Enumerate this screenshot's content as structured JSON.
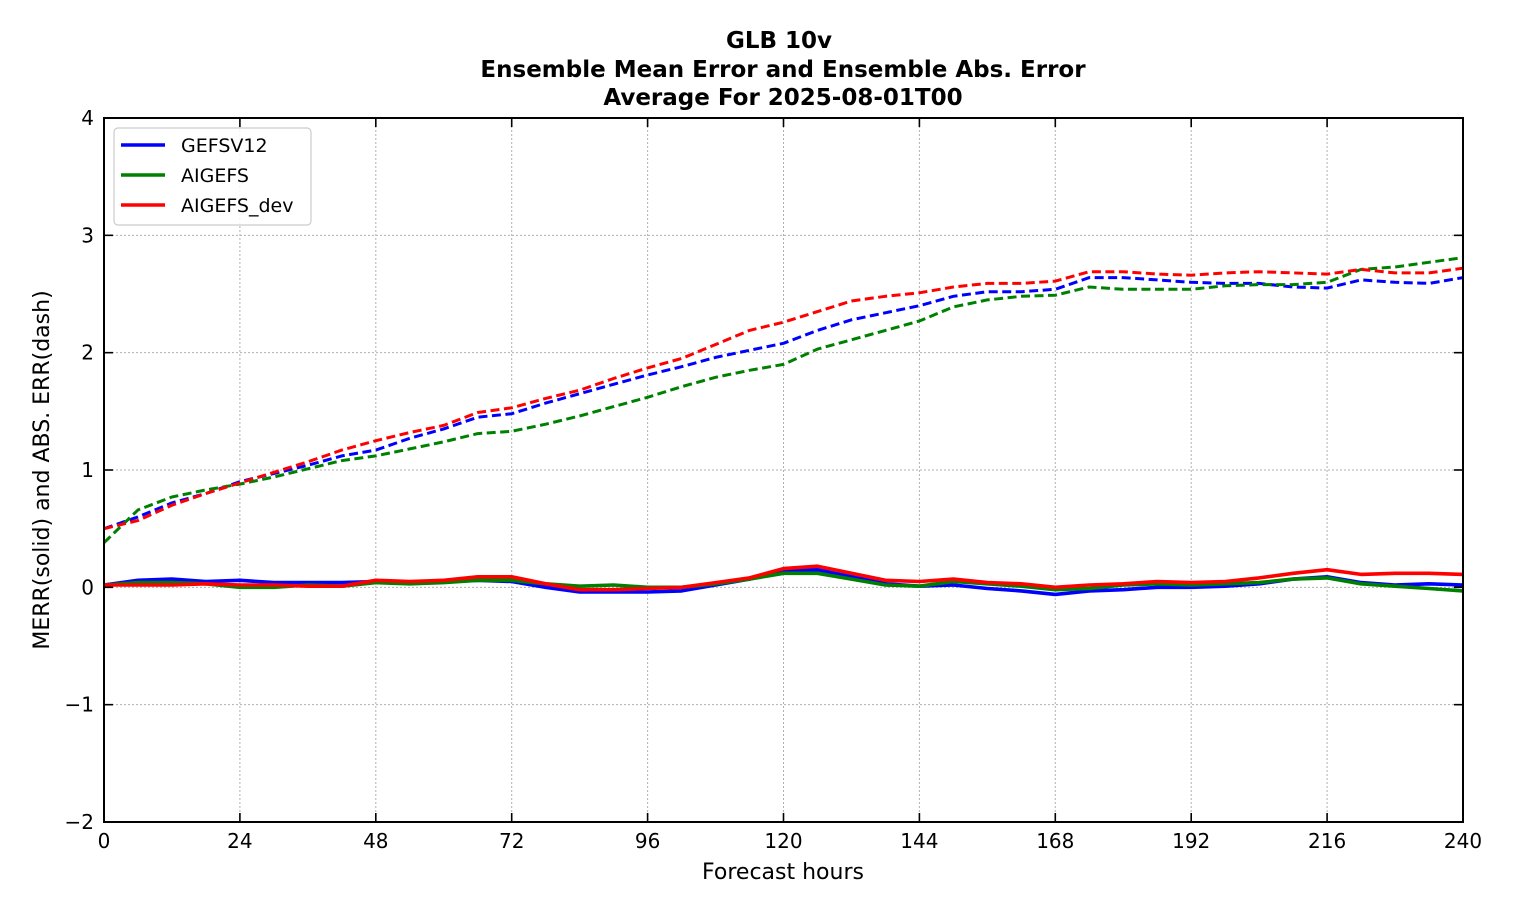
{
  "chart_data": {
    "type": "line",
    "title_lines": [
      "GLB 10v",
      "Ensemble Mean Error and Ensemble Abs. Error",
      "Average For 2025-08-01T00"
    ],
    "xlabel": "Forecast hours",
    "ylabel": "MERR(solid) and ABS. ERR(dash)",
    "xlim": [
      0,
      240
    ],
    "ylim": [
      -2,
      4
    ],
    "xticks": [
      0,
      24,
      48,
      72,
      96,
      120,
      144,
      168,
      192,
      216,
      240
    ],
    "yticks": [
      -2,
      -1,
      0,
      1,
      2,
      3,
      4
    ],
    "ytick_labels": [
      "−2",
      "−1",
      "0",
      "1",
      "2",
      "3",
      "4"
    ],
    "grid": true,
    "legend_position": "top-left",
    "x": [
      0,
      6,
      12,
      18,
      24,
      30,
      36,
      42,
      48,
      54,
      60,
      66,
      72,
      78,
      84,
      90,
      96,
      102,
      108,
      114,
      120,
      126,
      132,
      138,
      144,
      150,
      156,
      162,
      168,
      174,
      180,
      186,
      192,
      198,
      204,
      210,
      216,
      222,
      228,
      234,
      240
    ],
    "series": [
      {
        "name": "GEFSV12",
        "color": "#0000ff",
        "merr": [
          0.02,
          0.06,
          0.07,
          0.05,
          0.06,
          0.04,
          0.04,
          0.04,
          0.05,
          0.04,
          0.05,
          0.06,
          0.05,
          0.0,
          -0.04,
          -0.04,
          -0.04,
          -0.03,
          0.02,
          0.07,
          0.14,
          0.15,
          0.09,
          0.03,
          0.01,
          0.02,
          -0.01,
          -0.03,
          -0.06,
          -0.03,
          -0.02,
          0.0,
          0.0,
          0.01,
          0.03,
          0.07,
          0.09,
          0.04,
          0.02,
          0.03,
          0.02
        ],
        "abs_err": [
          0.5,
          0.6,
          0.72,
          0.8,
          0.9,
          0.97,
          1.04,
          1.12,
          1.17,
          1.27,
          1.35,
          1.45,
          1.48,
          1.57,
          1.65,
          1.73,
          1.81,
          1.88,
          1.96,
          2.02,
          2.08,
          2.19,
          2.28,
          2.34,
          2.4,
          2.48,
          2.52,
          2.52,
          2.54,
          2.64,
          2.64,
          2.62,
          2.6,
          2.59,
          2.59,
          2.56,
          2.55,
          2.62,
          2.6,
          2.59,
          2.64
        ]
      },
      {
        "name": "AIGEFS",
        "color": "#008000",
        "merr": [
          0.02,
          0.04,
          0.04,
          0.03,
          0.0,
          0.0,
          0.02,
          0.01,
          0.04,
          0.03,
          0.04,
          0.06,
          0.06,
          0.03,
          0.01,
          0.02,
          0.0,
          0.0,
          0.03,
          0.07,
          0.12,
          0.12,
          0.07,
          0.02,
          0.01,
          0.05,
          0.03,
          0.01,
          -0.02,
          -0.01,
          0.02,
          0.03,
          0.02,
          0.03,
          0.04,
          0.07,
          0.08,
          0.03,
          0.01,
          -0.01,
          -0.03
        ],
        "abs_err": [
          0.38,
          0.66,
          0.77,
          0.83,
          0.88,
          0.94,
          1.01,
          1.08,
          1.12,
          1.18,
          1.24,
          1.31,
          1.33,
          1.39,
          1.46,
          1.54,
          1.62,
          1.71,
          1.79,
          1.85,
          1.9,
          2.03,
          2.11,
          2.19,
          2.27,
          2.39,
          2.45,
          2.48,
          2.49,
          2.56,
          2.54,
          2.54,
          2.54,
          2.57,
          2.58,
          2.58,
          2.6,
          2.71,
          2.73,
          2.77,
          2.81
        ]
      },
      {
        "name": "AIGEFS_dev",
        "color": "#ff0000",
        "merr": [
          0.02,
          0.02,
          0.02,
          0.03,
          0.02,
          0.02,
          0.01,
          0.01,
          0.06,
          0.05,
          0.06,
          0.09,
          0.09,
          0.03,
          -0.02,
          -0.02,
          -0.01,
          0.0,
          0.04,
          0.08,
          0.16,
          0.18,
          0.12,
          0.06,
          0.05,
          0.07,
          0.04,
          0.03,
          0.0,
          0.02,
          0.03,
          0.05,
          0.04,
          0.05,
          0.08,
          0.12,
          0.15,
          0.11,
          0.12,
          0.12,
          0.11
        ],
        "abs_err": [
          0.5,
          0.57,
          0.7,
          0.8,
          0.89,
          0.98,
          1.07,
          1.17,
          1.25,
          1.32,
          1.38,
          1.49,
          1.53,
          1.61,
          1.68,
          1.78,
          1.87,
          1.95,
          2.07,
          2.19,
          2.26,
          2.35,
          2.44,
          2.48,
          2.51,
          2.56,
          2.59,
          2.59,
          2.61,
          2.69,
          2.69,
          2.67,
          2.66,
          2.68,
          2.69,
          2.68,
          2.67,
          2.71,
          2.68,
          2.68,
          2.72
        ]
      }
    ]
  }
}
